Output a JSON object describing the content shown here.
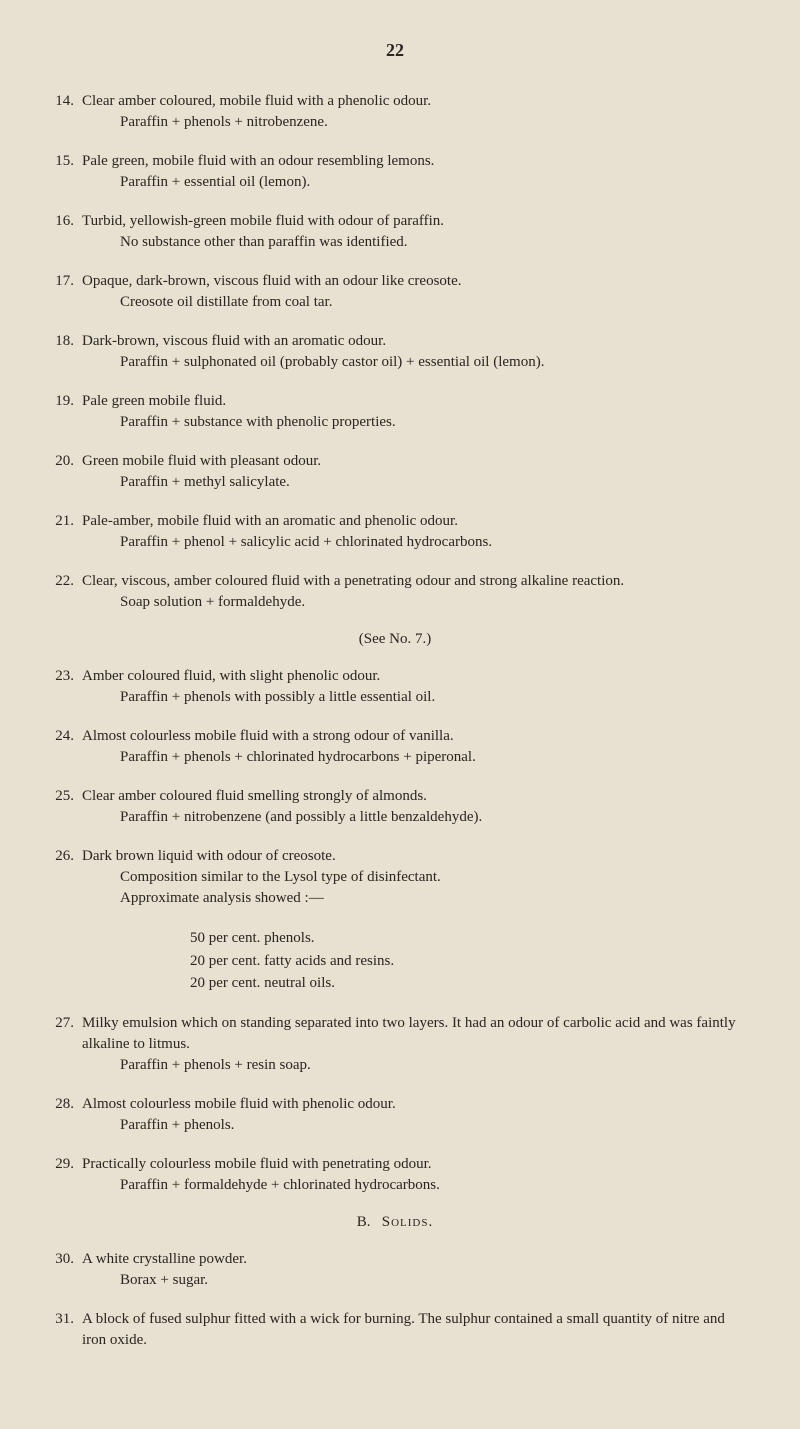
{
  "page_number": "22",
  "entries": [
    {
      "num": "14.",
      "text": "Clear amber coloured, mobile fluid with a phenolic odour.",
      "sub": "Paraffin + phenols + nitrobenzene."
    },
    {
      "num": "15.",
      "text": "Pale green, mobile fluid with an odour resembling lemons.",
      "sub": "Paraffin + essential oil (lemon)."
    },
    {
      "num": "16.",
      "text": "Turbid, yellowish-green mobile fluid with odour of paraffin.",
      "sub": "No substance other than paraffin was identified."
    },
    {
      "num": "17.",
      "text": "Opaque, dark-brown, viscous fluid with an odour like creosote.",
      "sub": "Creosote oil distillate from coal tar."
    },
    {
      "num": "18.",
      "text": "Dark-brown, viscous fluid with an aromatic odour.",
      "sub": "Paraffin + sulphonated oil (probably castor oil) + essential oil (lemon)."
    },
    {
      "num": "19.",
      "text": "Pale green mobile fluid.",
      "sub": "Paraffin + substance with phenolic properties."
    },
    {
      "num": "20.",
      "text": "Green mobile fluid with pleasant odour.",
      "sub": "Paraffin + methyl salicylate."
    },
    {
      "num": "21.",
      "text": "Pale-amber, mobile fluid with an aromatic and phenolic odour.",
      "sub": "Paraffin + phenol + salicylic acid + chlorinated hydrocarbons."
    },
    {
      "num": "22.",
      "text": "Clear, viscous, amber coloured fluid with a penetrating odour and strong alkaline reaction.",
      "sub": "Soap solution + formaldehyde.",
      "see": "(See No. 7.)"
    },
    {
      "num": "23.",
      "text": "Amber coloured fluid, with slight phenolic odour.",
      "sub": "Paraffin + phenols with possibly a little essential oil."
    },
    {
      "num": "24.",
      "text": "Almost colourless mobile fluid with a strong odour of vanilla.",
      "sub": "Paraffin + phenols + chlorinated hydrocarbons + piperonal."
    },
    {
      "num": "25.",
      "text": "Clear amber coloured fluid smelling strongly of almonds.",
      "sub": "Paraffin + nitrobenzene (and possibly a little benzaldehyde)."
    },
    {
      "num": "26.",
      "text": "Dark brown liquid with odour of creosote.",
      "sub": "Composition similar to the Lysol type of disinfectant.",
      "sub2": "Approximate analysis showed :—",
      "analysis": [
        "50 per cent. phenols.",
        "20 per cent. fatty acids and resins.",
        "20 per cent. neutral oils."
      ]
    },
    {
      "num": "27.",
      "text": "Milky emulsion which on standing separated into two layers.  It had an odour of carbolic acid and was faintly alkaline to litmus.",
      "sub": "Paraffin + phenols + resin soap."
    },
    {
      "num": "28.",
      "text": "Almost colourless mobile fluid with phenolic odour.",
      "sub": "Paraffin + phenols."
    },
    {
      "num": "29.",
      "text": "Practically colourless mobile fluid with penetrating odour.",
      "sub": "Paraffin + formaldehyde + chlorinated hydrocarbons."
    }
  ],
  "section_b": {
    "label": "B.",
    "title": "Solids."
  },
  "entries_b": [
    {
      "num": "30.",
      "text": "A white crystalline powder.",
      "sub": "Borax + sugar."
    },
    {
      "num": "31.",
      "text": "A block of fused sulphur fitted with a wick for burning.  The sulphur contained a small quantity of nitre and iron oxide."
    }
  ]
}
